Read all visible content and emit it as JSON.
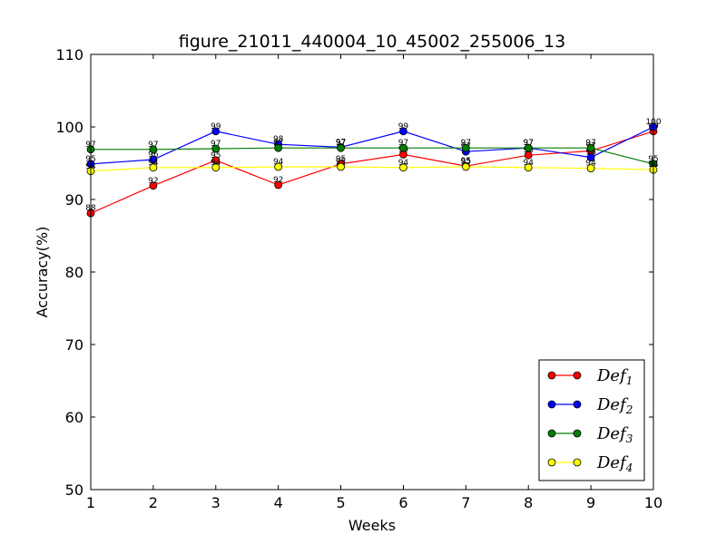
{
  "chart_data": {
    "type": "line",
    "title": "figure_21011_440004_10_45002_255006_13",
    "xlabel": "Weeks",
    "ylabel": "Accuracy(%)",
    "xlim": [
      1,
      10
    ],
    "ylim": [
      50,
      110
    ],
    "x": [
      1,
      2,
      3,
      4,
      5,
      6,
      7,
      8,
      9,
      10
    ],
    "xticks": [
      "1",
      "2",
      "3",
      "4",
      "5",
      "6",
      "7",
      "8",
      "9",
      "10"
    ],
    "yticks": [
      "50",
      "60",
      "70",
      "80",
      "90",
      "100",
      "110"
    ],
    "legend_position": "lower-right",
    "grid": false,
    "series": [
      {
        "name": "Def",
        "subscript": "1",
        "color": "#ff0000",
        "values": [
          88.1,
          91.9,
          95.4,
          92.0,
          94.9,
          96.2,
          94.6,
          96.1,
          96.7,
          99.4
        ],
        "labels": [
          "88",
          "92",
          "95",
          "92",
          "95",
          "96",
          "95",
          "96",
          "97",
          "99"
        ]
      },
      {
        "name": "Def",
        "subscript": "2",
        "color": "#0000ff",
        "values": [
          94.9,
          95.5,
          99.4,
          97.6,
          97.2,
          99.4,
          96.6,
          97.1,
          95.8,
          100.0
        ],
        "labels": [
          "95",
          "96",
          "99",
          "98",
          "97",
          "99",
          "97",
          "97",
          "96",
          "100"
        ]
      },
      {
        "name": "Def",
        "subscript": "3",
        "color": "#007f00",
        "values": [
          96.9,
          96.9,
          97.0,
          97.1,
          97.1,
          97.1,
          97.1,
          97.1,
          97.1,
          94.9
        ],
        "labels": [
          "97",
          "97",
          "97",
          "97",
          "97",
          "97",
          "97",
          "97",
          "97",
          "95"
        ]
      },
      {
        "name": "Def",
        "subscript": "4",
        "color": "#ffff00",
        "values": [
          93.9,
          94.4,
          94.4,
          94.5,
          94.5,
          94.4,
          94.5,
          94.4,
          94.3,
          94.1
        ],
        "labels": [
          "94",
          "94",
          "94",
          "94",
          "95",
          "94",
          "95",
          "94",
          "94",
          "94"
        ]
      }
    ]
  }
}
